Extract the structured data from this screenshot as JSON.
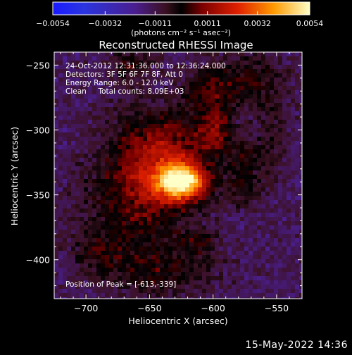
{
  "chart_data": {
    "type": "heatmap",
    "title": "Reconstructed RHESSI Image",
    "xlabel": "Heliocentric X (arcsec)",
    "ylabel": "Heliocentric Y (arcsec)",
    "xlim": [
      -725,
      -530
    ],
    "ylim": [
      -430,
      -240
    ],
    "x_ticks": [
      -700,
      -650,
      -600,
      -550
    ],
    "x_tick_labels": [
      "−700",
      "−650",
      "−600",
      "−550"
    ],
    "y_ticks": [
      -250,
      -300,
      -350,
      -400
    ],
    "y_tick_labels": [
      "−250",
      "−300",
      "−350",
      "−400"
    ],
    "annotations": [
      "24-Oct-2012 12:31:36.000 to 12:36:24.000",
      "Detectors: 3F 5F 6F 7F 8F, Att 0",
      "Energy Range: 6.0 - 12.0 keV",
      "Clean     Total counts: 8.09E+03"
    ],
    "peak_label": "Position of Peak = [-613,-339]",
    "peak": [
      -613,
      -339
    ],
    "colorbar": {
      "range": [
        -0.0054,
        0.0054
      ],
      "ticks": [
        -0.0054,
        -0.0032,
        -0.0011,
        0.0011,
        0.0032,
        0.0054
      ],
      "tick_labels": [
        "−0.0054",
        "−0.0032",
        "−0.0011",
        "0.0011",
        "0.0032",
        "0.0054"
      ],
      "unit": "(photons cm⁻² s⁻¹ asec⁻²)",
      "colormap": "rhessi-thermal"
    },
    "sources": [
      {
        "x": -625,
        "y": -340,
        "sx": 13,
        "sy": 9,
        "amp": 0.0058
      },
      {
        "x": -640,
        "y": -320,
        "sx": 26,
        "sy": 24,
        "amp": 0.0026
      },
      {
        "x": -598,
        "y": -300,
        "sx": 10,
        "sy": 12,
        "amp": 0.0018
      },
      {
        "x": -605,
        "y": -270,
        "sx": 12,
        "sy": 12,
        "amp": 0.0012
      },
      {
        "x": -575,
        "y": -262,
        "sx": 22,
        "sy": 14,
        "amp": 0.0014
      },
      {
        "x": -660,
        "y": -360,
        "sx": 30,
        "sy": 28,
        "amp": 0.0016
      },
      {
        "x": -640,
        "y": -410,
        "sx": 28,
        "sy": 12,
        "amp": 0.0012
      },
      {
        "x": -690,
        "y": -395,
        "sx": 14,
        "sy": 10,
        "amp": 0.001
      },
      {
        "x": -665,
        "y": -250,
        "sx": 12,
        "sy": 12,
        "amp": 0.0012
      },
      {
        "x": -575,
        "y": -320,
        "sx": 10,
        "sy": 9,
        "amp": 0.0012
      },
      {
        "x": -575,
        "y": -345,
        "sx": 10,
        "sy": 10,
        "amp": 0.0013
      },
      {
        "x": -555,
        "y": -305,
        "sx": 8,
        "sy": 22,
        "amp": 0.0009
      },
      {
        "x": -610,
        "y": -388,
        "sx": 10,
        "sy": 8,
        "amp": 0.0011
      }
    ]
  },
  "footer": {
    "timestamp": "15-May-2022 14:36"
  }
}
